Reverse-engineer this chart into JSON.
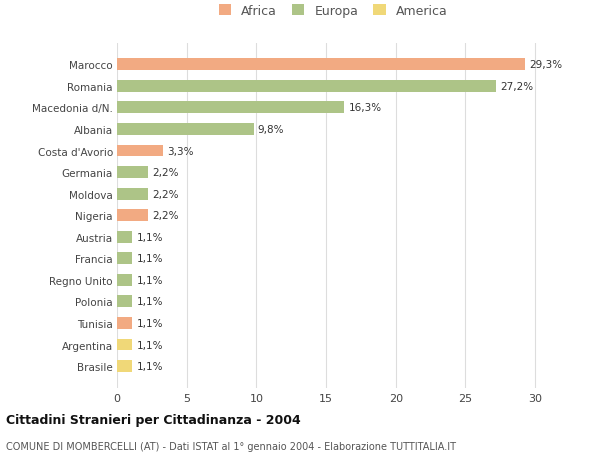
{
  "countries": [
    "Marocco",
    "Romania",
    "Macedonia d/N.",
    "Albania",
    "Costa d'Avorio",
    "Germania",
    "Moldova",
    "Nigeria",
    "Austria",
    "Francia",
    "Regno Unito",
    "Polonia",
    "Tunisia",
    "Argentina",
    "Brasile"
  ],
  "values": [
    29.3,
    27.2,
    16.3,
    9.8,
    3.3,
    2.2,
    2.2,
    2.2,
    1.1,
    1.1,
    1.1,
    1.1,
    1.1,
    1.1,
    1.1
  ],
  "labels": [
    "29,3%",
    "27,2%",
    "16,3%",
    "9,8%",
    "3,3%",
    "2,2%",
    "2,2%",
    "2,2%",
    "1,1%",
    "1,1%",
    "1,1%",
    "1,1%",
    "1,1%",
    "1,1%",
    "1,1%"
  ],
  "colors": [
    "#f2aa82",
    "#adc487",
    "#adc487",
    "#adc487",
    "#f2aa82",
    "#adc487",
    "#adc487",
    "#f2aa82",
    "#adc487",
    "#adc487",
    "#adc487",
    "#adc487",
    "#f2aa82",
    "#f0d878",
    "#f0d878"
  ],
  "legend_labels": [
    "Africa",
    "Europa",
    "America"
  ],
  "legend_colors": [
    "#f2aa82",
    "#adc487",
    "#f0d878"
  ],
  "title": "Cittadini Stranieri per Cittadinanza - 2004",
  "subtitle": "COMUNE DI MOMBERCELLI (AT) - Dati ISTAT al 1° gennaio 2004 - Elaborazione TUTTITALIA.IT",
  "xlim": [
    0,
    31
  ],
  "xticks": [
    0,
    5,
    10,
    15,
    20,
    25,
    30
  ],
  "bg_color": "#ffffff",
  "grid_color": "#dddddd",
  "bar_height": 0.55
}
